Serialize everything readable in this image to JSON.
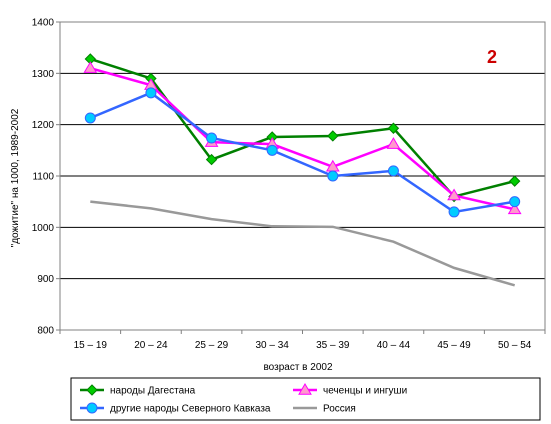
{
  "chart_data": {
    "type": "line",
    "title": "",
    "badge": {
      "text": "2",
      "color": "#cc0000"
    },
    "xlabel": "возраст в 2002",
    "ylabel": "\"дожитие\" на 1000, 1989-2002",
    "ylim": [
      800,
      1400
    ],
    "yticks": [
      800,
      900,
      1000,
      1100,
      1200,
      1300,
      1400
    ],
    "grid": "horizontal",
    "legend_position": "bottom",
    "categories": [
      "15 – 19",
      "20 – 24",
      "25 – 29",
      "30 – 34",
      "35 – 39",
      "40 – 44",
      "45 – 49",
      "50 – 54"
    ],
    "series": [
      {
        "name": "народы Дагестана",
        "color": "#008000",
        "marker": "diamond",
        "marker_fill": "#00cc00",
        "values": [
          1328,
          1290,
          1132,
          1176,
          1178,
          1193,
          1060,
          1090
        ]
      },
      {
        "name": "чеченцы и ингуши",
        "color": "#ff00ff",
        "marker": "triangle",
        "marker_fill": "#ff99cc",
        "values": [
          1310,
          1277,
          1166,
          1162,
          1118,
          1162,
          1062,
          1035
        ]
      },
      {
        "name": "другие народы Северного Кавказа",
        "color": "#3366ff",
        "marker": "circle",
        "marker_fill": "#00ccff",
        "values": [
          1213,
          1262,
          1174,
          1150,
          1100,
          1110,
          1030,
          1050
        ]
      },
      {
        "name": "Россия",
        "color": "#999999",
        "marker": "none",
        "marker_fill": "#999999",
        "values": [
          1050,
          1037,
          1016,
          1002,
          1001,
          972,
          921,
          887
        ]
      }
    ]
  }
}
